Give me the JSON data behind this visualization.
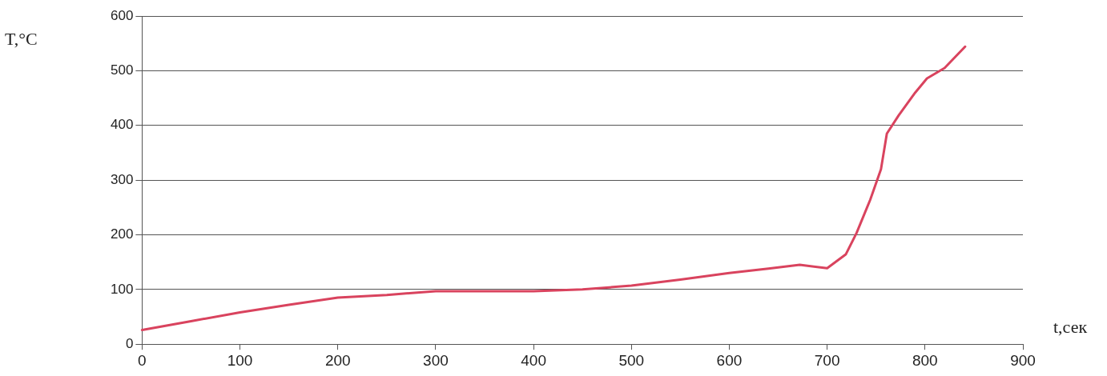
{
  "chart_data": {
    "type": "line",
    "xlabel": "t,сек",
    "ylabel": "T,°C",
    "x": [
      0,
      50,
      100,
      150,
      200,
      250,
      300,
      350,
      400,
      450,
      500,
      550,
      600,
      640,
      672,
      700,
      719,
      730,
      744,
      755,
      761,
      773,
      790,
      802,
      820,
      841
    ],
    "series": [
      {
        "color": "#d9435e",
        "values": [
          26,
          42,
          58,
          72,
          85,
          90,
          97,
          97,
          97,
          100,
          107,
          118,
          130,
          138,
          145,
          139,
          164,
          203,
          264,
          320,
          385,
          418,
          460,
          486,
          505,
          544
        ]
      }
    ],
    "xlim": [
      0,
      900
    ],
    "xticks": [
      0,
      100,
      200,
      300,
      400,
      500,
      600,
      700,
      800,
      900
    ],
    "ylim": [
      0,
      600
    ],
    "yticks": [
      0,
      100,
      200,
      300,
      400,
      500,
      600
    ],
    "grid": "y",
    "legend": false,
    "marker": "none",
    "line_style": "solid"
  }
}
